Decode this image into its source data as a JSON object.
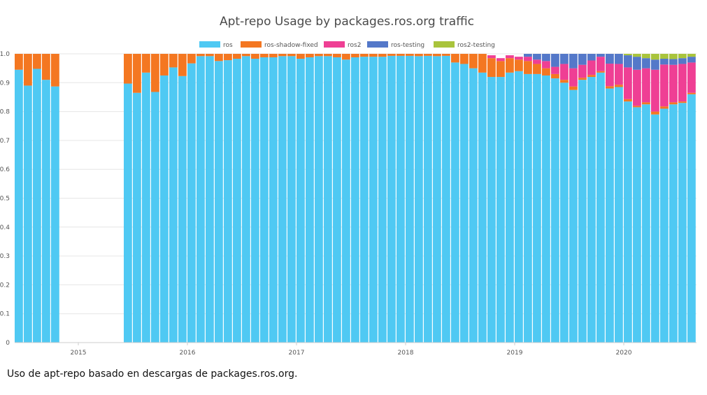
{
  "caption": "Uso de apt-repo basado en descargas de packages.ros.org.",
  "chart_data": {
    "type": "bar",
    "stacked": true,
    "title": "Apt-repo Usage by packages.ros.org traffic",
    "xlabel": "",
    "ylabel": "",
    "ylim": [
      0,
      1.0
    ],
    "y_ticks": [
      "0",
      "0.1",
      "0.2",
      "0.3",
      "0.4",
      "0.5",
      "0.6",
      "0.7",
      "0.8",
      "0.9",
      "1.0"
    ],
    "grid": true,
    "legend_position": "top-center",
    "x_tick_labels": [
      "2015",
      "2016",
      "2017",
      "2018",
      "2019",
      "2020"
    ],
    "x_ticks_at_month_index": [
      7,
      19,
      31,
      43,
      55,
      67
    ],
    "month_index_start": "2014-06",
    "colors": {
      "ros": "#4fc9f3",
      "ros-shadow-fixed": "#f47721",
      "ros2": "#ef3f94",
      "ros-testing": "#5478c9",
      "ros2-testing": "#a9c43c"
    },
    "series": [
      {
        "name": "ros",
        "values": [
          0.945,
          0.89,
          0.948,
          0.91,
          0.887,
          null,
          null,
          null,
          null,
          null,
          null,
          null,
          0.897,
          0.865,
          0.935,
          0.868,
          0.925,
          0.953,
          0.923,
          0.967,
          0.992,
          0.992,
          0.975,
          0.978,
          0.983,
          0.992,
          0.983,
          0.988,
          0.988,
          0.992,
          0.992,
          0.983,
          0.988,
          0.992,
          0.992,
          0.988,
          0.98,
          0.988,
          0.99,
          0.99,
          0.99,
          0.993,
          0.993,
          0.993,
          0.992,
          0.993,
          0.992,
          0.993,
          0.97,
          0.965,
          0.95,
          0.935,
          0.92,
          0.92,
          0.935,
          0.94,
          0.93,
          0.93,
          0.925,
          0.915,
          0.9,
          0.875,
          0.91,
          0.92,
          0.935,
          0.88,
          0.885,
          0.835,
          0.815,
          0.825,
          0.79,
          0.81,
          0.825,
          0.83,
          0.86
        ]
      },
      {
        "name": "ros-shadow-fixed",
        "values": [
          0.055,
          0.11,
          0.052,
          0.09,
          0.113,
          null,
          null,
          null,
          null,
          null,
          null,
          null,
          0.103,
          0.135,
          0.065,
          0.132,
          0.075,
          0.047,
          0.077,
          0.033,
          0.008,
          0.008,
          0.025,
          0.022,
          0.017,
          0.008,
          0.017,
          0.012,
          0.012,
          0.008,
          0.008,
          0.017,
          0.012,
          0.008,
          0.008,
          0.012,
          0.02,
          0.012,
          0.01,
          0.01,
          0.01,
          0.007,
          0.007,
          0.007,
          0.008,
          0.007,
          0.008,
          0.007,
          0.03,
          0.035,
          0.05,
          0.065,
          0.065,
          0.055,
          0.05,
          0.04,
          0.045,
          0.035,
          0.025,
          0.015,
          0.01,
          0.012,
          0.007,
          0.007,
          0.005,
          0.008,
          0.008,
          0.008,
          0.005,
          0.007,
          0.01,
          0.008,
          0.007,
          0.005,
          0.005
        ]
      },
      {
        "name": "ros2",
        "values": [
          0,
          0,
          0,
          0,
          0,
          null,
          null,
          null,
          null,
          null,
          null,
          null,
          0,
          0,
          0,
          0,
          0,
          0,
          0,
          0,
          0,
          0,
          0,
          0,
          0,
          0,
          0,
          0,
          0,
          0,
          0,
          0,
          0,
          0,
          0,
          0,
          0,
          0,
          0,
          0,
          0,
          0,
          0,
          0,
          0,
          0,
          0,
          0,
          0,
          0,
          0,
          0,
          0.01,
          0.01,
          0.01,
          0.01,
          0.015,
          0.015,
          0.025,
          0.025,
          0.055,
          0.063,
          0.045,
          0.05,
          0.05,
          0.078,
          0.072,
          0.11,
          0.125,
          0.118,
          0.145,
          0.145,
          0.13,
          0.13,
          0.105
        ]
      },
      {
        "name": "ros-testing",
        "values": [
          0,
          0,
          0,
          0,
          0,
          null,
          null,
          null,
          null,
          null,
          null,
          null,
          0,
          0,
          0,
          0,
          0,
          0,
          0,
          0,
          0,
          0,
          0,
          0,
          0,
          0,
          0,
          0,
          0,
          0,
          0,
          0,
          0,
          0,
          0,
          0,
          0,
          0,
          0,
          0,
          0,
          0,
          0,
          0,
          0,
          0,
          0,
          0,
          0,
          0,
          0,
          0,
          0,
          0,
          0,
          0,
          0.01,
          0.02,
          0.025,
          0.045,
          0.035,
          0.05,
          0.038,
          0.023,
          0.01,
          0.034,
          0.035,
          0.042,
          0.045,
          0.035,
          0.035,
          0.02,
          0.02,
          0.02,
          0.02
        ]
      },
      {
        "name": "ros2-testing",
        "values": [
          0,
          0,
          0,
          0,
          0,
          null,
          null,
          null,
          null,
          null,
          null,
          null,
          0,
          0,
          0,
          0,
          0,
          0,
          0,
          0,
          0,
          0,
          0,
          0,
          0,
          0,
          0,
          0,
          0,
          0,
          0,
          0,
          0,
          0,
          0,
          0,
          0,
          0,
          0,
          0,
          0,
          0,
          0,
          0,
          0,
          0,
          0,
          0,
          0,
          0,
          0,
          0,
          0,
          0,
          0,
          0,
          0,
          0,
          0,
          0,
          0,
          0,
          0,
          0,
          0,
          0,
          0,
          0.005,
          0.01,
          0.015,
          0.02,
          0.017,
          0.018,
          0.015,
          0.01
        ]
      }
    ]
  }
}
